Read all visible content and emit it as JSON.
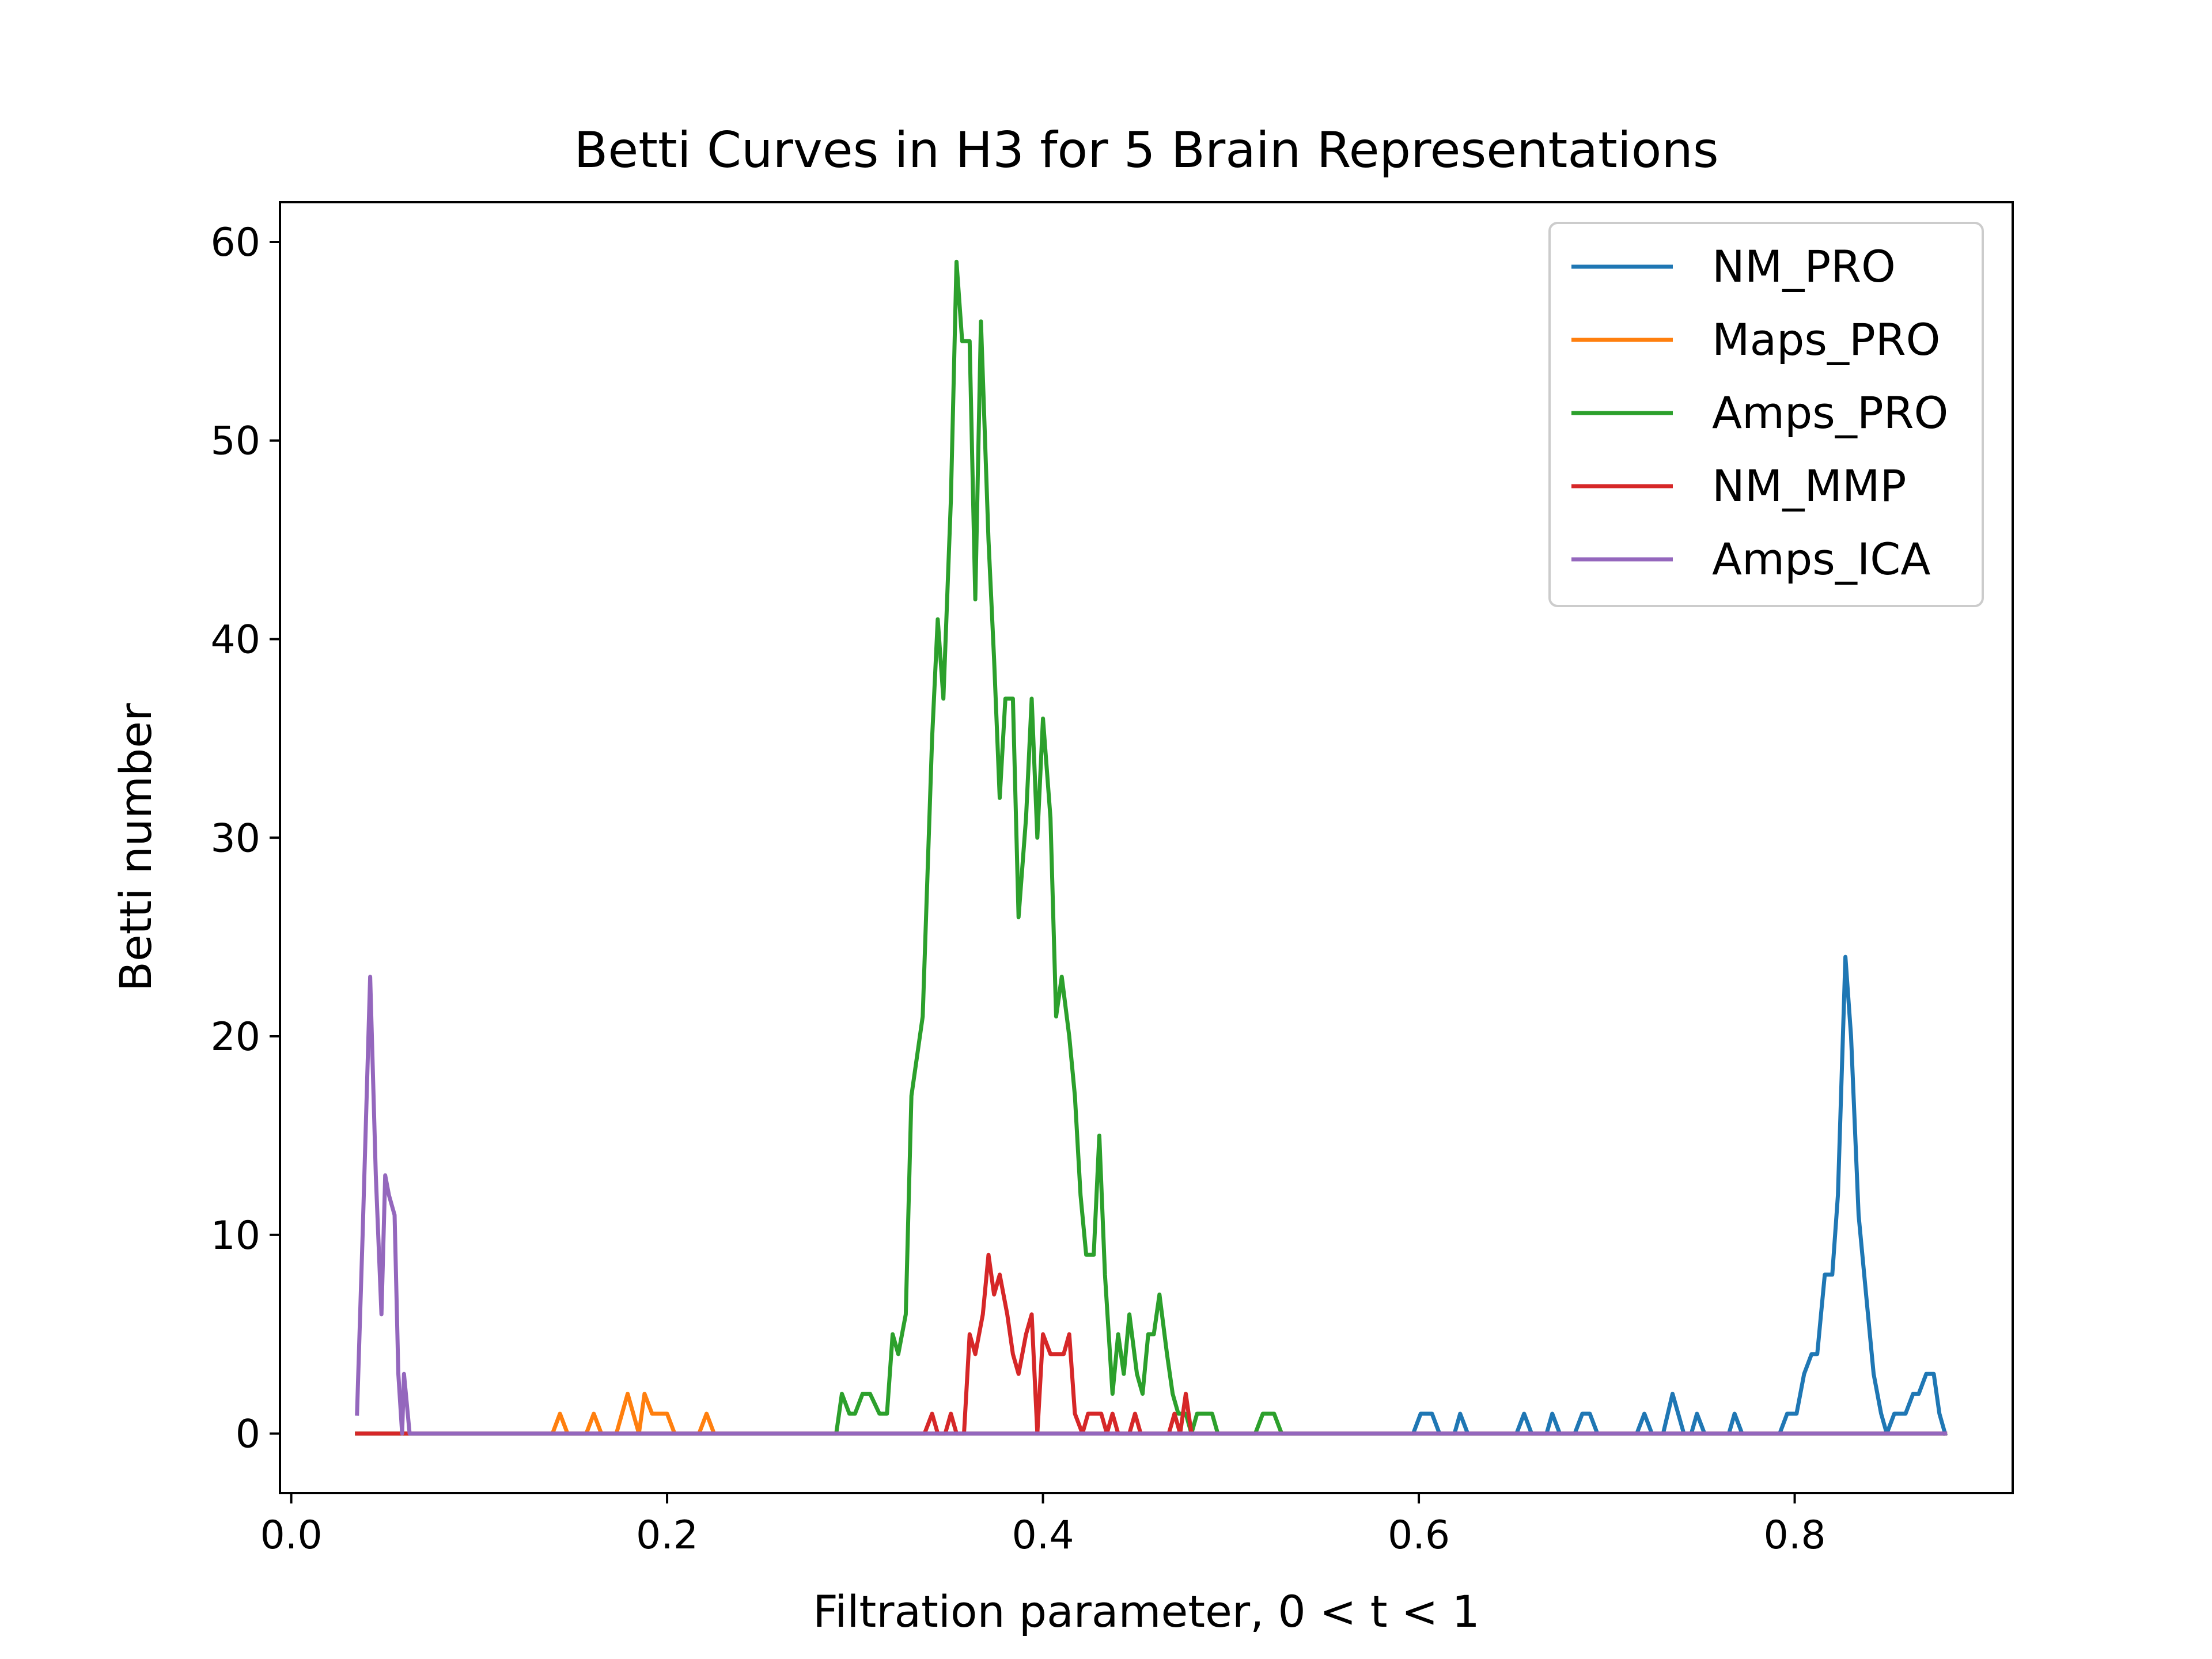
{
  "chart_data": {
    "type": "line",
    "title": "Betti Curves in H3 for 5 Brain Representations",
    "xlabel": "Filtration parameter, 0 < t < 1",
    "ylabel": "Betti number",
    "xlim": [
      -0.006,
      0.916
    ],
    "ylim": [
      -3,
      62
    ],
    "xticks": [
      0.0,
      0.2,
      0.4,
      0.6,
      0.8
    ],
    "xtick_labels": [
      "0.0",
      "0.2",
      "0.4",
      "0.6",
      "0.8"
    ],
    "yticks": [
      0,
      10,
      20,
      30,
      40,
      50,
      60
    ],
    "ytick_labels": [
      "0",
      "10",
      "20",
      "30",
      "40",
      "50",
      "60"
    ],
    "grid": false,
    "legend_position": "top-right",
    "series": [
      {
        "name": "NM_PRO",
        "color": "#1f77b4",
        "points": [
          [
            0.035,
            0
          ],
          [
            0.597,
            0
          ],
          [
            0.601,
            1
          ],
          [
            0.607,
            1
          ],
          [
            0.611,
            0
          ],
          [
            0.619,
            0
          ],
          [
            0.622,
            1
          ],
          [
            0.626,
            0
          ],
          [
            0.652,
            0
          ],
          [
            0.656,
            1
          ],
          [
            0.66,
            0
          ],
          [
            0.668,
            0
          ],
          [
            0.671,
            1
          ],
          [
            0.675,
            0
          ],
          [
            0.683,
            0
          ],
          [
            0.687,
            1
          ],
          [
            0.691,
            1
          ],
          [
            0.695,
            0
          ],
          [
            0.716,
            0
          ],
          [
            0.72,
            1
          ],
          [
            0.724,
            0
          ],
          [
            0.73,
            0
          ],
          [
            0.735,
            2
          ],
          [
            0.741,
            0
          ],
          [
            0.745,
            0
          ],
          [
            0.748,
            1
          ],
          [
            0.752,
            0
          ],
          [
            0.765,
            0
          ],
          [
            0.768,
            1
          ],
          [
            0.772,
            0
          ],
          [
            0.792,
            0
          ],
          [
            0.796,
            1
          ],
          [
            0.801,
            1
          ],
          [
            0.805,
            3
          ],
          [
            0.809,
            4
          ],
          [
            0.812,
            4
          ],
          [
            0.816,
            8
          ],
          [
            0.82,
            8
          ],
          [
            0.823,
            12
          ],
          [
            0.827,
            24
          ],
          [
            0.83,
            20
          ],
          [
            0.834,
            11
          ],
          [
            0.838,
            7
          ],
          [
            0.842,
            3
          ],
          [
            0.846,
            1
          ],
          [
            0.849,
            0
          ],
          [
            0.853,
            1
          ],
          [
            0.859,
            1
          ],
          [
            0.863,
            2
          ],
          [
            0.866,
            2
          ],
          [
            0.87,
            3
          ],
          [
            0.874,
            3
          ],
          [
            0.877,
            1
          ],
          [
            0.88,
            0
          ]
        ]
      },
      {
        "name": "Maps_PRO",
        "color": "#ff7f0e",
        "points": [
          [
            0.035,
            0
          ],
          [
            0.139,
            0
          ],
          [
            0.143,
            1
          ],
          [
            0.147,
            0
          ],
          [
            0.157,
            0
          ],
          [
            0.161,
            1
          ],
          [
            0.165,
            0
          ],
          [
            0.173,
            0
          ],
          [
            0.179,
            2
          ],
          [
            0.185,
            0
          ],
          [
            0.188,
            2
          ],
          [
            0.192,
            1
          ],
          [
            0.2,
            1
          ],
          [
            0.204,
            0
          ],
          [
            0.217,
            0
          ],
          [
            0.221,
            1
          ],
          [
            0.225,
            0
          ],
          [
            0.88,
            0
          ]
        ]
      },
      {
        "name": "Amps_PRO",
        "color": "#2ca02c",
        "points": [
          [
            0.035,
            0
          ],
          [
            0.29,
            0
          ],
          [
            0.293,
            2
          ],
          [
            0.297,
            1
          ],
          [
            0.3,
            1
          ],
          [
            0.304,
            2
          ],
          [
            0.308,
            2
          ],
          [
            0.313,
            1
          ],
          [
            0.317,
            1
          ],
          [
            0.32,
            5
          ],
          [
            0.323,
            4
          ],
          [
            0.327,
            6
          ],
          [
            0.33,
            17
          ],
          [
            0.336,
            21
          ],
          [
            0.341,
            35
          ],
          [
            0.344,
            41
          ],
          [
            0.347,
            37
          ],
          [
            0.351,
            47
          ],
          [
            0.354,
            59
          ],
          [
            0.357,
            55
          ],
          [
            0.361,
            55
          ],
          [
            0.364,
            42
          ],
          [
            0.367,
            56
          ],
          [
            0.371,
            45
          ],
          [
            0.374,
            39
          ],
          [
            0.377,
            32
          ],
          [
            0.38,
            37
          ],
          [
            0.384,
            37
          ],
          [
            0.387,
            26
          ],
          [
            0.391,
            31
          ],
          [
            0.394,
            37
          ],
          [
            0.397,
            30
          ],
          [
            0.4,
            36
          ],
          [
            0.404,
            31
          ],
          [
            0.407,
            21
          ],
          [
            0.41,
            23
          ],
          [
            0.414,
            20
          ],
          [
            0.417,
            17
          ],
          [
            0.42,
            12
          ],
          [
            0.423,
            9
          ],
          [
            0.427,
            9
          ],
          [
            0.43,
            15
          ],
          [
            0.433,
            8
          ],
          [
            0.437,
            2
          ],
          [
            0.44,
            5
          ],
          [
            0.443,
            3
          ],
          [
            0.446,
            6
          ],
          [
            0.45,
            3
          ],
          [
            0.453,
            2
          ],
          [
            0.456,
            5
          ],
          [
            0.459,
            5
          ],
          [
            0.462,
            7
          ],
          [
            0.466,
            4
          ],
          [
            0.469,
            2
          ],
          [
            0.472,
            1
          ],
          [
            0.476,
            1
          ],
          [
            0.479,
            0
          ],
          [
            0.482,
            1
          ],
          [
            0.49,
            1
          ],
          [
            0.493,
            0
          ],
          [
            0.513,
            0
          ],
          [
            0.517,
            1
          ],
          [
            0.523,
            1
          ],
          [
            0.527,
            0
          ],
          [
            0.88,
            0
          ]
        ]
      },
      {
        "name": "NM_MMP",
        "color": "#d62728",
        "points": [
          [
            0.035,
            0
          ],
          [
            0.337,
            0
          ],
          [
            0.341,
            1
          ],
          [
            0.344,
            0
          ],
          [
            0.348,
            0
          ],
          [
            0.351,
            1
          ],
          [
            0.354,
            0
          ],
          [
            0.358,
            0
          ],
          [
            0.361,
            5
          ],
          [
            0.364,
            4
          ],
          [
            0.368,
            6
          ],
          [
            0.371,
            9
          ],
          [
            0.374,
            7
          ],
          [
            0.377,
            8
          ],
          [
            0.381,
            6
          ],
          [
            0.384,
            4
          ],
          [
            0.387,
            3
          ],
          [
            0.391,
            5
          ],
          [
            0.394,
            6
          ],
          [
            0.397,
            0
          ],
          [
            0.4,
            5
          ],
          [
            0.404,
            4
          ],
          [
            0.408,
            4
          ],
          [
            0.411,
            4
          ],
          [
            0.414,
            5
          ],
          [
            0.417,
            1
          ],
          [
            0.421,
            0
          ],
          [
            0.424,
            1
          ],
          [
            0.431,
            1
          ],
          [
            0.434,
            0
          ],
          [
            0.437,
            1
          ],
          [
            0.44,
            0
          ],
          [
            0.446,
            0
          ],
          [
            0.449,
            1
          ],
          [
            0.452,
            0
          ],
          [
            0.467,
            0
          ],
          [
            0.47,
            1
          ],
          [
            0.473,
            0
          ],
          [
            0.476,
            2
          ],
          [
            0.479,
            0
          ],
          [
            0.88,
            0
          ]
        ]
      },
      {
        "name": "Amps_ICA",
        "color": "#9467bd",
        "points": [
          [
            0.035,
            1
          ],
          [
            0.038,
            10
          ],
          [
            0.042,
            23
          ],
          [
            0.045,
            13
          ],
          [
            0.048,
            6
          ],
          [
            0.05,
            13
          ],
          [
            0.052,
            12
          ],
          [
            0.055,
            11
          ],
          [
            0.057,
            3
          ],
          [
            0.059,
            0
          ],
          [
            0.06,
            3
          ],
          [
            0.063,
            0
          ],
          [
            0.88,
            0
          ]
        ]
      }
    ]
  }
}
